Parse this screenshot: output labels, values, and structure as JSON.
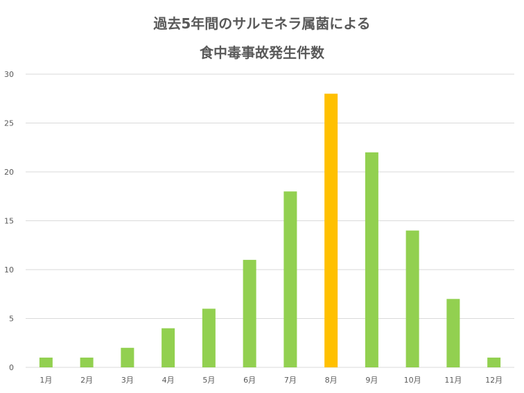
{
  "chart_data": {
    "type": "bar",
    "title_lines": [
      "過去5年間のサルモネラ属菌による",
      "食中毒事故発生件数"
    ],
    "categories": [
      "1月",
      "2月",
      "3月",
      "4月",
      "5月",
      "6月",
      "7月",
      "8月",
      "9月",
      "10月",
      "11月",
      "12月"
    ],
    "values": [
      1,
      1,
      2,
      4,
      6,
      11,
      18,
      28,
      22,
      14,
      7,
      1
    ],
    "highlight_category": "8月",
    "ylim": [
      0,
      30
    ],
    "yticks": [
      0,
      5,
      10,
      15,
      20,
      25,
      30
    ],
    "xlabel": "",
    "ylabel": "",
    "grid": true,
    "legend": "none",
    "colors": {
      "bar": "#92d050",
      "highlight": "#ffc000",
      "grid": "#d9d9d9",
      "text": "#595959"
    }
  }
}
